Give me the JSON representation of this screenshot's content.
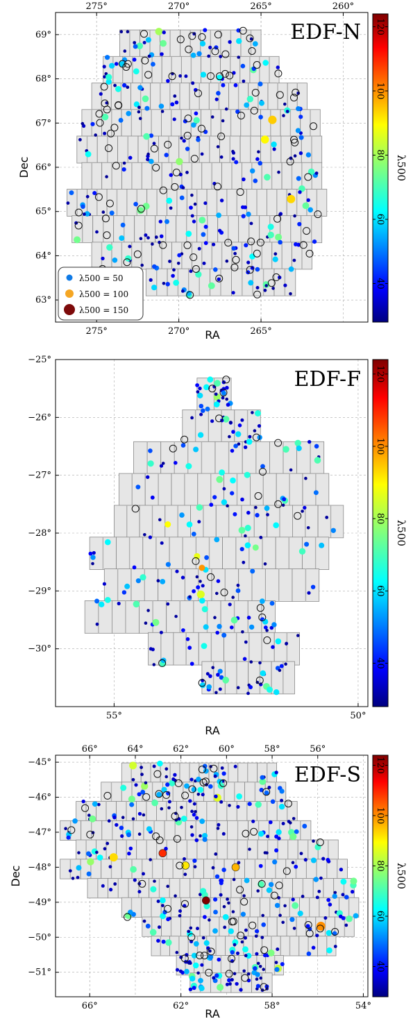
{
  "colorbar": {
    "label": "λ500",
    "range": [
      28,
      124
    ],
    "ticks": [
      40,
      60,
      80,
      100,
      120
    ],
    "colormap": "jet"
  },
  "legend": {
    "placement": "lower-left",
    "entries": [
      {
        "label": "λ500 = 50",
        "value": 50,
        "color": "#0f7ae6"
      },
      {
        "label": "λ500 = 100",
        "value": 100,
        "color": "#f5a623"
      },
      {
        "label": "λ500 = 150",
        "value": 150,
        "color": "#7d0a0a"
      }
    ]
  },
  "chart_data": [
    {
      "type": "scatter",
      "title": "EDF-N",
      "xlabel": "RA",
      "ylabel": "Dec",
      "xlim": [
        277.5,
        258.5
      ],
      "ylim": [
        62.5,
        69.5
      ],
      "xticks": [
        275,
        270,
        265
      ],
      "xticks_top": [
        275,
        270,
        265,
        260
      ],
      "yticks": [
        63,
        64,
        65,
        66,
        67,
        68,
        69
      ],
      "x_tick_labels": [
        "275°",
        "270°",
        "265°"
      ],
      "x_tick_labels_top": [
        "275°",
        "270°",
        "265°",
        "260°"
      ],
      "y_tick_labels": [
        "63°",
        "64°",
        "65°",
        "66°",
        "67°",
        "68°",
        "69°"
      ],
      "rows": [
        {
          "dec": 68.8,
          "ra_start": 273.6,
          "ra_end": 265.0,
          "count": 7
        },
        {
          "dec": 68.2,
          "ra_start": 274.6,
          "ra_end": 263.9,
          "count": 9
        },
        {
          "dec": 67.6,
          "ra_start": 275.3,
          "ra_end": 262.2,
          "count": 11
        },
        {
          "dec": 67.0,
          "ra_start": 275.9,
          "ra_end": 261.4,
          "count": 12
        },
        {
          "dec": 66.4,
          "ra_start": 276.2,
          "ra_end": 261.3,
          "count": 12
        },
        {
          "dec": 65.8,
          "ra_start": 275.9,
          "ra_end": 261.3,
          "count": 12
        },
        {
          "dec": 65.2,
          "ra_start": 276.8,
          "ra_end": 261.0,
          "count": 13
        },
        {
          "dec": 64.6,
          "ra_start": 276.5,
          "ra_end": 261.3,
          "count": 12
        },
        {
          "dec": 64.0,
          "ra_start": 275.3,
          "ra_end": 261.9,
          "count": 11
        },
        {
          "dec": 63.4,
          "ra_start": 272.0,
          "ra_end": 262.9,
          "count": 7
        }
      ]
    },
    {
      "type": "scatter",
      "title": "EDF-F",
      "xlabel": "RA",
      "ylabel": "",
      "xlim": [
        56.2,
        49.8
      ],
      "ylim": [
        -31.0,
        -25.0
      ],
      "xticks": [
        55,
        50
      ],
      "yticks": [
        -30,
        -29,
        -28,
        -27,
        -26,
        -25
      ],
      "x_tick_labels": [
        "55°",
        "50°"
      ],
      "y_tick_labels": [
        "−30°",
        "−29°",
        "−28°",
        "−27°",
        "−26°",
        "−25°"
      ],
      "rows": [
        {
          "dec": -25.6,
          "ra_start": 53.3,
          "ra_end": 52.6,
          "count": 1
        },
        {
          "dec": -26.15,
          "ra_start": 53.6,
          "ra_end": 52.0,
          "count": 3
        },
        {
          "dec": -26.7,
          "ra_start": 54.6,
          "ra_end": 50.7,
          "count": 7
        },
        {
          "dec": -27.25,
          "ra_start": 54.9,
          "ra_end": 50.6,
          "count": 8
        },
        {
          "dec": -27.8,
          "ra_start": 55.0,
          "ra_end": 50.3,
          "count": 9
        },
        {
          "dec": -28.35,
          "ra_start": 55.5,
          "ra_end": 50.6,
          "count": 9
        },
        {
          "dec": -28.9,
          "ra_start": 55.2,
          "ra_end": 50.8,
          "count": 8
        },
        {
          "dec": -29.45,
          "ra_start": 55.6,
          "ra_end": 51.7,
          "count": 7
        },
        {
          "dec": -30.0,
          "ra_start": 54.3,
          "ra_end": 51.2,
          "count": 6
        },
        {
          "dec": -30.5,
          "ra_start": 53.2,
          "ra_end": 51.3,
          "count": 4
        }
      ]
    },
    {
      "type": "scatter",
      "title": "EDF-S",
      "xlabel": "RA",
      "ylabel": "Dec",
      "xlim": [
        67.5,
        53.8
      ],
      "ylim": [
        -51.7,
        -44.8
      ],
      "xticks": [
        66,
        62,
        58,
        54
      ],
      "xticks_top": [
        66,
        64,
        62,
        60,
        58,
        56
      ],
      "yticks": [
        -51,
        -50,
        -49,
        -48,
        -47,
        -46,
        -45
      ],
      "x_tick_labels": [
        "66°",
        "62°",
        "58°",
        "54°"
      ],
      "x_tick_labels_top": [
        "66°",
        "64°",
        "62°",
        "60°",
        "58°",
        "56°"
      ],
      "y_tick_labels": [
        "−51°",
        "−50°",
        "−49°",
        "−48°",
        "−47°",
        "−46°",
        "−45°"
      ],
      "rows": [
        {
          "dec": -45.3,
          "ra_start": 64.6,
          "ra_end": 57.8,
          "count": 8
        },
        {
          "dec": -45.85,
          "ra_start": 65.5,
          "ra_end": 57.4,
          "count": 9
        },
        {
          "dec": -46.4,
          "ra_start": 66.6,
          "ra_end": 56.9,
          "count": 11
        },
        {
          "dec": -46.95,
          "ra_start": 67.3,
          "ra_end": 56.3,
          "count": 12
        },
        {
          "dec": -47.5,
          "ra_start": 66.6,
          "ra_end": 55.1,
          "count": 13
        },
        {
          "dec": -48.05,
          "ra_start": 67.3,
          "ra_end": 54.7,
          "count": 14
        },
        {
          "dec": -48.6,
          "ra_start": 66.1,
          "ra_end": 54.4,
          "count": 13
        },
        {
          "dec": -49.15,
          "ra_start": 64.6,
          "ra_end": 54.2,
          "count": 12
        },
        {
          "dec": -49.7,
          "ra_start": 63.7,
          "ra_end": 54.4,
          "count": 11
        },
        {
          "dec": -50.25,
          "ra_start": 63.3,
          "ra_end": 55.2,
          "count": 10
        },
        {
          "dec": -50.8,
          "ra_start": 62.2,
          "ra_end": 57.5,
          "count": 6
        },
        {
          "dec": -51.3,
          "ra_start": 61.6,
          "ra_end": 58.0,
          "count": 4
        }
      ]
    }
  ]
}
